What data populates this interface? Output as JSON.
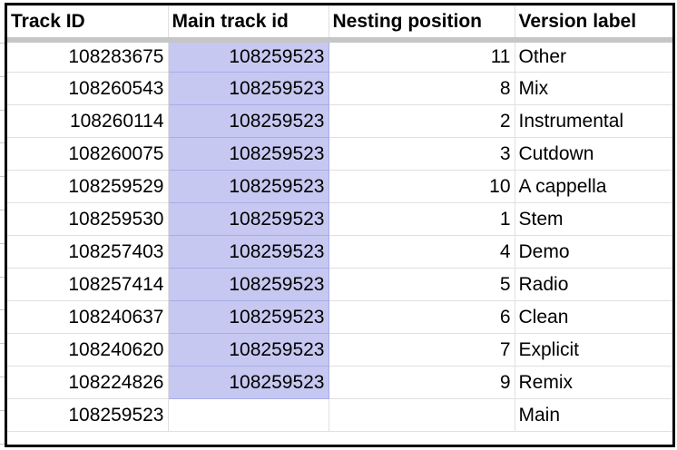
{
  "headers": [
    "Track ID",
    "Main track id",
    "Nesting position",
    "Version label"
  ],
  "selection_color": "#c6c8f1",
  "rows": [
    {
      "track_id": "108283675",
      "main_track_id": "108259523",
      "nesting_position": "11",
      "version_label": "Other"
    },
    {
      "track_id": "108260543",
      "main_track_id": "108259523",
      "nesting_position": "8",
      "version_label": "Mix"
    },
    {
      "track_id": "108260114",
      "main_track_id": "108259523",
      "nesting_position": "2",
      "version_label": "Instrumental"
    },
    {
      "track_id": "108260075",
      "main_track_id": "108259523",
      "nesting_position": "3",
      "version_label": "Cutdown"
    },
    {
      "track_id": "108259529",
      "main_track_id": "108259523",
      "nesting_position": "10",
      "version_label": "A cappella"
    },
    {
      "track_id": "108259530",
      "main_track_id": "108259523",
      "nesting_position": "1",
      "version_label": "Stem"
    },
    {
      "track_id": "108257403",
      "main_track_id": "108259523",
      "nesting_position": "4",
      "version_label": "Demo"
    },
    {
      "track_id": "108257414",
      "main_track_id": "108259523",
      "nesting_position": "5",
      "version_label": "Radio"
    },
    {
      "track_id": "108240637",
      "main_track_id": "108259523",
      "nesting_position": "6",
      "version_label": "Clean"
    },
    {
      "track_id": "108240620",
      "main_track_id": "108259523",
      "nesting_position": "7",
      "version_label": "Explicit"
    },
    {
      "track_id": "108224826",
      "main_track_id": "108259523",
      "nesting_position": "9",
      "version_label": "Remix"
    },
    {
      "track_id": "108259523",
      "main_track_id": "",
      "nesting_position": "",
      "version_label": "Main"
    }
  ]
}
